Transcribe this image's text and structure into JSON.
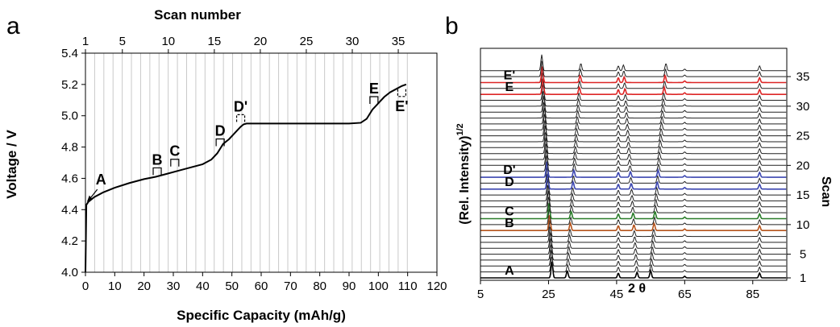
{
  "chart_data": [
    {
      "panel_label": "a",
      "type": "line",
      "xlabel": "Specific Capacity (mAh/g)",
      "ylabel": "Voltage / V",
      "top_axis_label": "Scan number",
      "xlim": [
        0,
        120
      ],
      "ylim": [
        4.0,
        5.4
      ],
      "x_ticks": [
        "0",
        "10",
        "20",
        "30",
        "40",
        "50",
        "60",
        "70",
        "80",
        "90",
        "100",
        "110",
        "120"
      ],
      "y_ticks": [
        "4.0",
        "4.2",
        "4.4",
        "4.6",
        "4.8",
        "5.0",
        "5.2",
        "5.4"
      ],
      "top_ticks": [
        {
          "label": "1",
          "x": 0
        },
        {
          "label": "5",
          "x": 12.6
        },
        {
          "label": "10",
          "x": 28.3
        },
        {
          "label": "15",
          "x": 44.0
        },
        {
          "label": "20",
          "x": 59.7
        },
        {
          "label": "25",
          "x": 75.4
        },
        {
          "label": "30",
          "x": 91.1
        },
        {
          "label": "35",
          "x": 106.8
        }
      ],
      "scan_line_count": 36,
      "scan_line_spacing": 3.14,
      "grid": "vertical lines at each scan",
      "series": [
        {
          "x": [
            0,
            0.3,
            1,
            3,
            6,
            10,
            15,
            20,
            24,
            28,
            32,
            36,
            40,
            43,
            45,
            47,
            49,
            51,
            52,
            53,
            54,
            55,
            56,
            60,
            65,
            70,
            75,
            80,
            85,
            90,
            94,
            96,
            97,
            98,
            100,
            102,
            104,
            106,
            108,
            109.5
          ],
          "y": [
            4.0,
            4.43,
            4.45,
            4.48,
            4.51,
            4.54,
            4.57,
            4.595,
            4.61,
            4.63,
            4.65,
            4.67,
            4.69,
            4.72,
            4.76,
            4.82,
            4.85,
            4.89,
            4.91,
            4.93,
            4.945,
            4.95,
            4.95,
            4.95,
            4.95,
            4.95,
            4.95,
            4.95,
            4.95,
            4.95,
            4.955,
            4.98,
            5.01,
            5.04,
            5.08,
            5.12,
            5.15,
            5.17,
            5.19,
            5.2
          ]
        }
      ],
      "annotations": [
        {
          "label": "A",
          "x": 0.5,
          "y": 4.45,
          "text_x": 3.5,
          "text_y": 4.55,
          "arrow": true
        },
        {
          "label": "B",
          "x": 24.5,
          "y": 4.6,
          "bracket": "solid"
        },
        {
          "label": "C",
          "x": 30.5,
          "y": 4.655,
          "bracket": "solid"
        },
        {
          "label": "D",
          "x": 46,
          "y": 4.785,
          "bracket": "solid"
        },
        {
          "label": "D'",
          "x": 53,
          "y": 4.94,
          "bracket": "dashed"
        },
        {
          "label": "E",
          "x": 98.5,
          "y": 5.055,
          "bracket": "solid"
        },
        {
          "label": "E'",
          "x": 108,
          "y": 5.19,
          "bracket": "dashed",
          "below": true
        }
      ]
    },
    {
      "panel_label": "b",
      "type": "line",
      "xlabel": "2 θ",
      "ylabel": "(Rel. Intensity)",
      "ylabel_superscript": "1/2",
      "y2label": "Scan",
      "xlim": [
        5,
        95
      ],
      "x_ticks": [
        "5",
        "25",
        "45",
        "65",
        "85"
      ],
      "scan_ticks": [
        "1",
        "5",
        "10",
        "15",
        "20",
        "25",
        "30",
        "35"
      ],
      "scan_tick_values": [
        1,
        5,
        10,
        15,
        20,
        25,
        30,
        35
      ],
      "scan_count": 36,
      "highlighted_scans": [
        {
          "label": "A",
          "scan": 1,
          "color": "#000000"
        },
        {
          "label": "B",
          "scan": 9,
          "color": "#b5531b"
        },
        {
          "label": "C",
          "scan": 11,
          "color": "#2a7d2a"
        },
        {
          "label": "D",
          "scan": 16,
          "color": "#3b46b0"
        },
        {
          "label": "D'",
          "scan": 18,
          "color": "#3b46b0"
        },
        {
          "label": "E",
          "scan": 32,
          "color": "#dd2626"
        },
        {
          "label": "E'",
          "scan": 34,
          "color": "#dd2626"
        }
      ],
      "peaks": [
        {
          "pos_start": 26.0,
          "pos_end": 23.0,
          "height": 20
        },
        {
          "pos_start": 30.5,
          "pos_end": 34.5,
          "height": 9
        },
        {
          "pos_start": 45.5,
          "pos_end": 45.5,
          "height": 6
        },
        {
          "pos_start": 51.0,
          "pos_end": 47.0,
          "height": 7
        },
        {
          "pos_start": 55.0,
          "pos_end": 59.5,
          "height": 9
        },
        {
          "pos_start": 65.0,
          "pos_end": 65.0,
          "height": 2
        },
        {
          "pos_start": 87.0,
          "pos_end": 87.0,
          "height": 6
        }
      ],
      "colors": {
        "default": "#222222",
        "B": "#b5531b",
        "C": "#2a7d2a",
        "D": "#3b46b0",
        "E": "#dd2626"
      }
    }
  ]
}
